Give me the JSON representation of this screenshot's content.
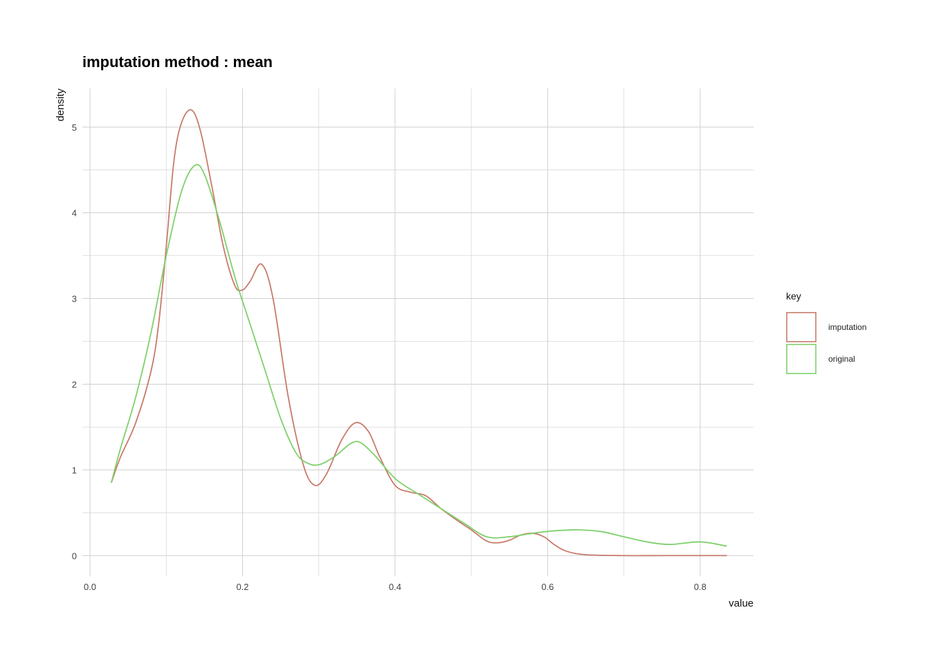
{
  "chart_data": {
    "type": "line",
    "title": "imputation method : mean",
    "xlabel": "value",
    "ylabel": "density",
    "xlim": [
      -0.01,
      0.87
    ],
    "ylim": [
      -0.24,
      5.45
    ],
    "x_ticks": [
      0.0,
      0.2,
      0.4,
      0.6,
      0.8
    ],
    "x_tick_labels": [
      "0.0",
      "0.2",
      "0.4",
      "0.6",
      "0.8"
    ],
    "x_minor_ticks": [
      0.1,
      0.3,
      0.5,
      0.7
    ],
    "y_ticks": [
      0,
      1,
      2,
      3,
      4,
      5
    ],
    "y_tick_labels": [
      "0",
      "1",
      "2",
      "3",
      "4",
      "5"
    ],
    "y_minor_ticks": [
      0.5,
      1.5,
      2.5,
      3.5,
      4.5
    ],
    "grid": true,
    "legend": {
      "title": "key",
      "position": "right"
    },
    "series": [
      {
        "name": "imputation",
        "color": "#c87a6a",
        "x": [
          0.028,
          0.04,
          0.06,
          0.08,
          0.09,
          0.1,
          0.11,
          0.12,
          0.133,
          0.145,
          0.16,
          0.175,
          0.19,
          0.2,
          0.21,
          0.225,
          0.24,
          0.26,
          0.28,
          0.295,
          0.31,
          0.33,
          0.348,
          0.365,
          0.38,
          0.4,
          0.42,
          0.44,
          0.46,
          0.48,
          0.5,
          0.52,
          0.535,
          0.55,
          0.565,
          0.58,
          0.595,
          0.61,
          0.625,
          0.65,
          0.7,
          0.75,
          0.8,
          0.835
        ],
        "y": [
          0.85,
          1.15,
          1.55,
          2.15,
          2.7,
          3.6,
          4.6,
          5.05,
          5.2,
          4.95,
          4.3,
          3.6,
          3.15,
          3.1,
          3.2,
          3.4,
          3.0,
          1.85,
          1.05,
          0.82,
          0.95,
          1.35,
          1.55,
          1.45,
          1.15,
          0.82,
          0.74,
          0.7,
          0.55,
          0.42,
          0.3,
          0.17,
          0.15,
          0.18,
          0.24,
          0.26,
          0.22,
          0.12,
          0.05,
          0.01,
          0.0,
          0.0,
          0.0,
          0.0
        ]
      },
      {
        "name": "original",
        "color": "#7ed06a",
        "x": [
          0.028,
          0.04,
          0.06,
          0.08,
          0.1,
          0.12,
          0.137,
          0.15,
          0.17,
          0.19,
          0.21,
          0.23,
          0.25,
          0.27,
          0.285,
          0.3,
          0.32,
          0.348,
          0.37,
          0.4,
          0.43,
          0.46,
          0.49,
          0.52,
          0.55,
          0.58,
          0.61,
          0.64,
          0.67,
          0.7,
          0.73,
          0.76,
          0.8,
          0.835
        ],
        "y": [
          0.85,
          1.25,
          1.85,
          2.6,
          3.5,
          4.25,
          4.55,
          4.45,
          3.9,
          3.25,
          2.7,
          2.15,
          1.6,
          1.2,
          1.08,
          1.06,
          1.15,
          1.33,
          1.2,
          0.9,
          0.72,
          0.55,
          0.38,
          0.22,
          0.22,
          0.26,
          0.29,
          0.3,
          0.28,
          0.22,
          0.16,
          0.13,
          0.16,
          0.11
        ]
      }
    ]
  }
}
